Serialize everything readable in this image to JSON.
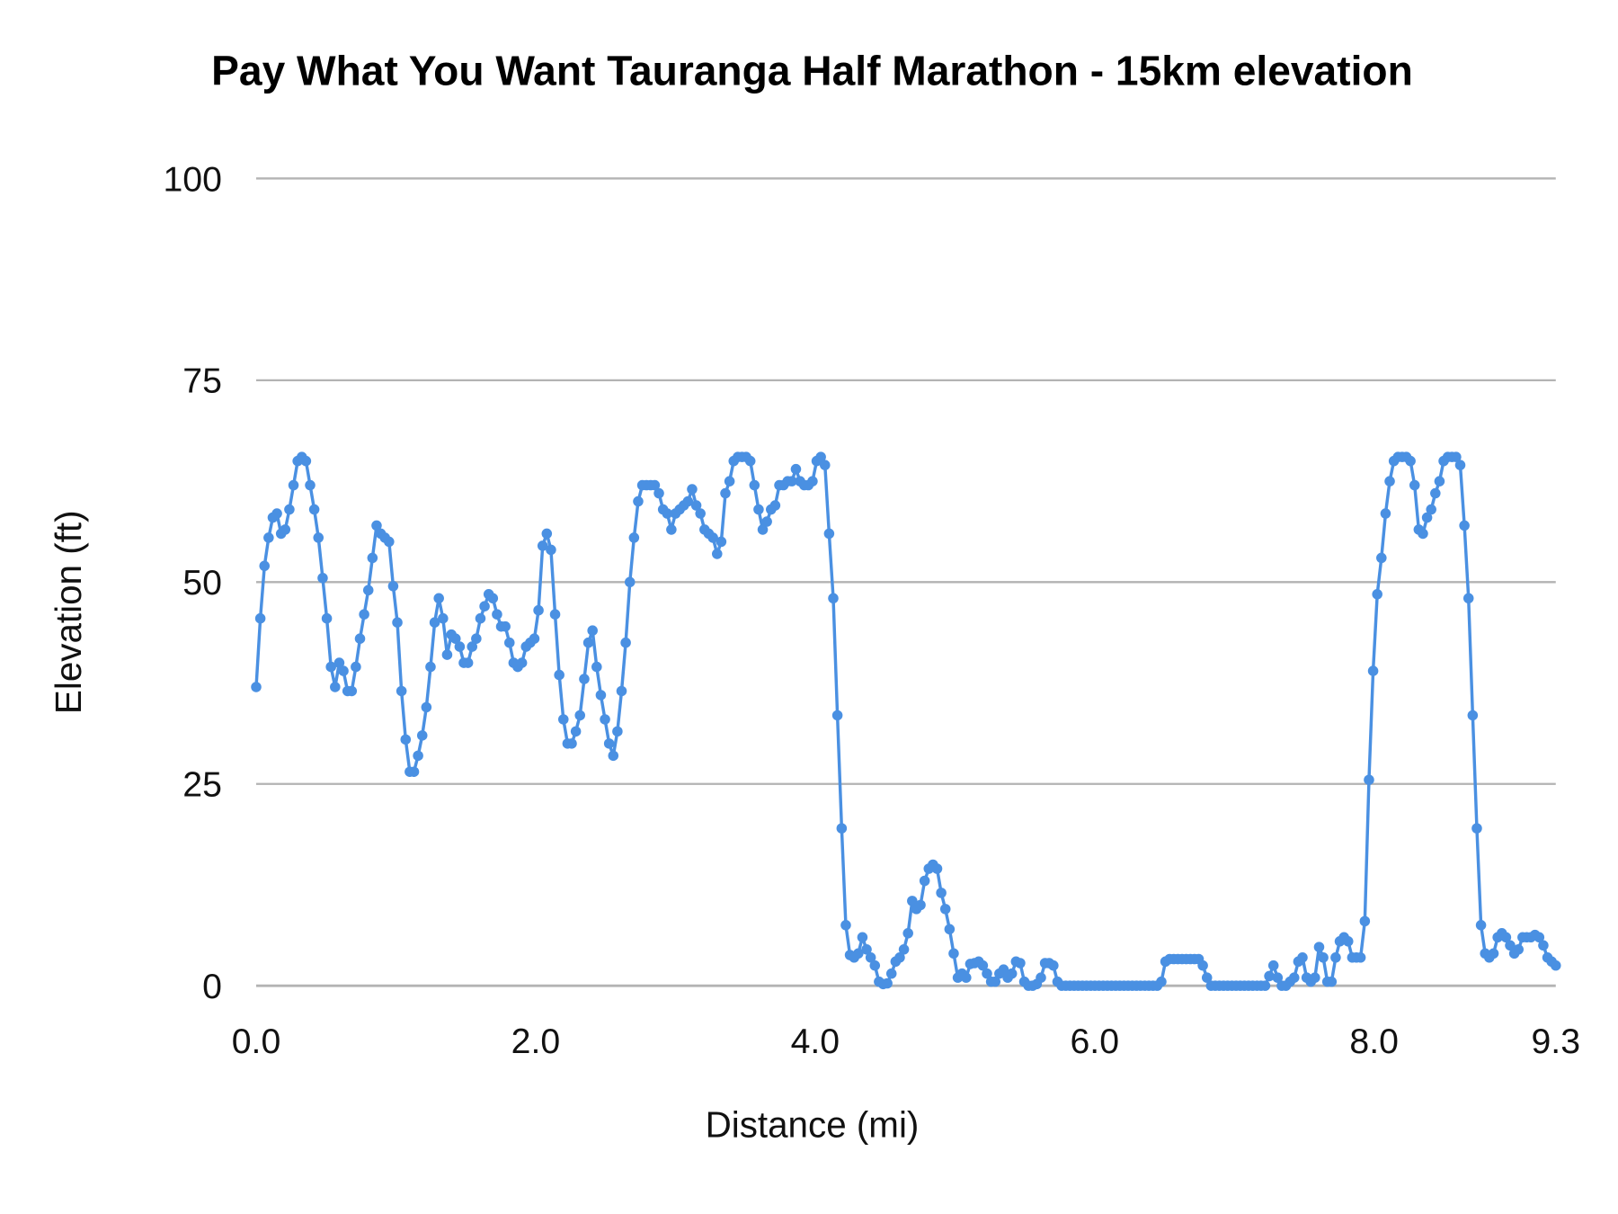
{
  "chart_data": {
    "type": "line",
    "title": "Pay What You Want Tauranga Half Marathon - 15km elevation",
    "xlabel": "Distance (mi)",
    "ylabel": "Elevation (ft)",
    "xlim": [
      0,
      9.3
    ],
    "ylim": [
      0,
      100
    ],
    "x_ticks": [
      "0.0",
      "2.0",
      "4.0",
      "6.0",
      "8.0",
      "9.3"
    ],
    "x_tick_values": [
      0,
      2,
      4,
      6,
      8,
      9.3
    ],
    "y_ticks": [
      "0",
      "25",
      "50",
      "75",
      "100"
    ],
    "y_tick_values": [
      0,
      25,
      50,
      75,
      100
    ],
    "grid": "horizontal",
    "legend": "none",
    "series_color": "#4a90e2",
    "grid_color": "#b3b3b3",
    "x_sampling": "evenly spaced from 0 to 9.3 mi",
    "series": [
      {
        "values": [
          37,
          45.5,
          52,
          55.5,
          58,
          58.5,
          56,
          56.5,
          59,
          62,
          65,
          65.5,
          65,
          62,
          59,
          55.5,
          50.5,
          45.5,
          39.5,
          37,
          40,
          39,
          36.5,
          36.5,
          39.5,
          43,
          46,
          49,
          53,
          57,
          56,
          55.5,
          55,
          49.5,
          45,
          36.5,
          30.5,
          26.5,
          26.5,
          28.5,
          31,
          34.5,
          39.5,
          45,
          48,
          45.5,
          41,
          43.5,
          43,
          42,
          40,
          40,
          42,
          43,
          45.5,
          47,
          48.5,
          48,
          46,
          44.5,
          44.5,
          42.5,
          40,
          39.5,
          40,
          42,
          42.5,
          43,
          46.5,
          54.5,
          56,
          54,
          46,
          38.5,
          33,
          30,
          30,
          31.5,
          33.5,
          38,
          42.5,
          44,
          39.5,
          36,
          33,
          30,
          28.5,
          31.5,
          36.5,
          42.5,
          50,
          55.5,
          60,
          62,
          62,
          62,
          62,
          61,
          59,
          58.5,
          56.5,
          58.5,
          59,
          59.5,
          60,
          61.5,
          59.5,
          58.5,
          56.5,
          56,
          55.5,
          53.5,
          55,
          61,
          62.5,
          65,
          65.5,
          65.5,
          65.5,
          65,
          62,
          59,
          56.5,
          57.5,
          59,
          59.5,
          62,
          62,
          62.5,
          62.5,
          64,
          62.5,
          62,
          62,
          62.5,
          65,
          65.5,
          64.5,
          56,
          48,
          33.5,
          19.5,
          7.5,
          3.8,
          3.5,
          4,
          6,
          4.5,
          3.5,
          2.5,
          0.5,
          0.2,
          0.3,
          1.5,
          3,
          3.5,
          4.5,
          6.5,
          10.5,
          9.5,
          10,
          13,
          14.5,
          15,
          14.5,
          11.5,
          9.5,
          7,
          4,
          1,
          1.5,
          1,
          2.7,
          2.8,
          3,
          2.5,
          1.5,
          0.5,
          0.5,
          1.5,
          2,
          1,
          1.5,
          3,
          2.8,
          0.5,
          0,
          0,
          0.2,
          1,
          2.8,
          2.8,
          2.5,
          0.5,
          0,
          0,
          0,
          0,
          0,
          0,
          0,
          0,
          0,
          0,
          0,
          0,
          0,
          0,
          0,
          0,
          0,
          0,
          0,
          0,
          0,
          0,
          0,
          0,
          0.5,
          3,
          3.3,
          3.3,
          3.3,
          3.3,
          3.3,
          3.3,
          3.3,
          3.3,
          2.5,
          1,
          0,
          0,
          0,
          0,
          0,
          0,
          0,
          0,
          0,
          0,
          0,
          0,
          0,
          0,
          1.2,
          2.5,
          1,
          0,
          0,
          0.5,
          1,
          3,
          3.5,
          1,
          0.5,
          1,
          4.8,
          3.5,
          0.5,
          0.5,
          3.5,
          5.5,
          6,
          5.5,
          3.5,
          3.5,
          3.5,
          8,
          25.5,
          39,
          48.5,
          53,
          58.5,
          62.5,
          65,
          65.5,
          65.5,
          65.5,
          65,
          62,
          56.5,
          56,
          58,
          59,
          61,
          62.5,
          65,
          65.5,
          65.5,
          65.5,
          64.5,
          57,
          48,
          33.5,
          19.5,
          7.5,
          4,
          3.5,
          4,
          6,
          6.5,
          6,
          5,
          4,
          4.5,
          6,
          6,
          6,
          6.3,
          6,
          5,
          3.5,
          3,
          2.5
        ]
      }
    ]
  }
}
